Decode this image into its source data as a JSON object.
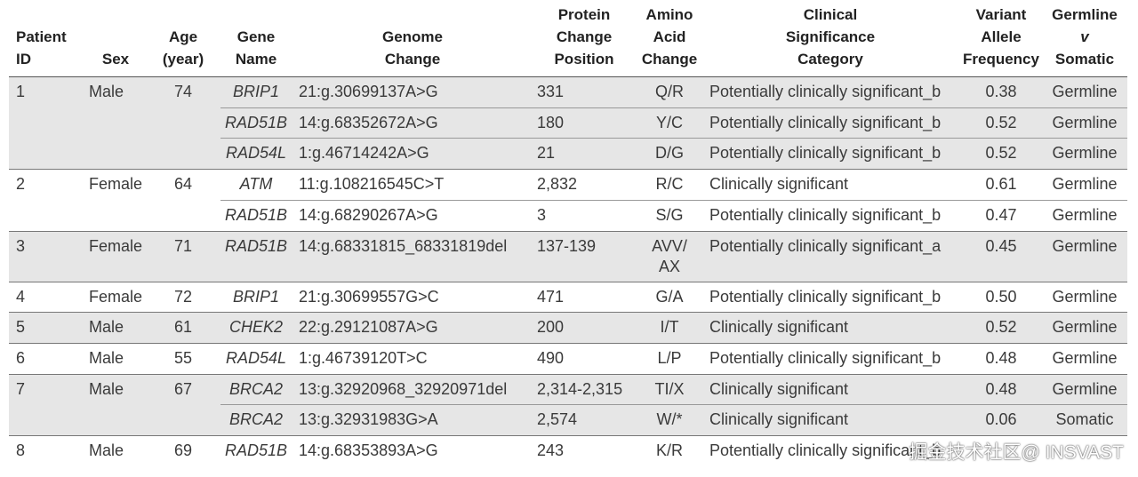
{
  "table": {
    "columns": [
      [
        "Patient",
        "ID"
      ],
      [
        "Sex"
      ],
      [
        "Age",
        "(year)"
      ],
      [
        "Gene",
        "Name"
      ],
      [
        "Genome",
        "Change"
      ],
      [
        "Protein",
        "Change",
        "Position"
      ],
      [
        "Amino",
        "Acid",
        "Change"
      ],
      [
        "Clinical",
        "Significance",
        "Category"
      ],
      [
        "Variant",
        "Allele",
        "Frequency"
      ],
      [
        "Germline",
        "v",
        "Somatic"
      ]
    ],
    "patients": [
      {
        "id": "1",
        "sex": "Male",
        "age": "74",
        "variants": [
          {
            "gene": "BRIP1",
            "genome": "21:g.30699137A>G",
            "protein": "331",
            "amino": "Q/R",
            "category": "Potentially clinically significant_b",
            "vaf": "0.38",
            "origin": "Germline"
          },
          {
            "gene": "RAD51B",
            "genome": "14:g.68352672A>G",
            "protein": "180",
            "amino": "Y/C",
            "category": "Potentially clinically significant_b",
            "vaf": "0.52",
            "origin": "Germline"
          },
          {
            "gene": "RAD54L",
            "genome": "1:g.46714242A>G",
            "protein": "21",
            "amino": "D/G",
            "category": "Potentially clinically significant_b",
            "vaf": "0.52",
            "origin": "Germline"
          }
        ]
      },
      {
        "id": "2",
        "sex": "Female",
        "age": "64",
        "variants": [
          {
            "gene": "ATM",
            "genome": "11:g.108216545C>T",
            "protein": "2,832",
            "amino": "R/C",
            "category": "Clinically significant",
            "vaf": "0.61",
            "origin": "Germline"
          },
          {
            "gene": "RAD51B",
            "genome": "14:g.68290267A>G",
            "protein": "3",
            "amino": "S/G",
            "category": "Potentially clinically significant_b",
            "vaf": "0.47",
            "origin": "Germline"
          }
        ]
      },
      {
        "id": "3",
        "sex": "Female",
        "age": "71",
        "variants": [
          {
            "gene": "RAD51B",
            "genome": "14:g.68331815_68331819del",
            "protein": "137-139",
            "amino": "AVV/\nAX",
            "category": "Potentially clinically significant_a",
            "vaf": "0.45",
            "origin": "Germline"
          }
        ]
      },
      {
        "id": "4",
        "sex": "Female",
        "age": "72",
        "variants": [
          {
            "gene": "BRIP1",
            "genome": "21:g.30699557G>C",
            "protein": "471",
            "amino": "G/A",
            "category": "Potentially clinically significant_b",
            "vaf": "0.50",
            "origin": "Germline"
          }
        ]
      },
      {
        "id": "5",
        "sex": "Male",
        "age": "61",
        "variants": [
          {
            "gene": "CHEK2",
            "genome": "22:g.29121087A>G",
            "protein": "200",
            "amino": "I/T",
            "category": "Clinically significant",
            "vaf": "0.52",
            "origin": "Germline"
          }
        ]
      },
      {
        "id": "6",
        "sex": "Male",
        "age": "55",
        "variants": [
          {
            "gene": "RAD54L",
            "genome": "1:g.46739120T>C",
            "protein": "490",
            "amino": "L/P",
            "category": "Potentially clinically significant_b",
            "vaf": "0.48",
            "origin": "Germline"
          }
        ]
      },
      {
        "id": "7",
        "sex": "Male",
        "age": "67",
        "variants": [
          {
            "gene": "BRCA2",
            "genome": "13:g.32920968_32920971del",
            "protein": "2,314-2,315",
            "amino": "TI/X",
            "category": "Clinically significant",
            "vaf": "0.48",
            "origin": "Germline"
          },
          {
            "gene": "BRCA2",
            "genome": "13:g.32931983G>A",
            "protein": "2,574",
            "amino": "W/*",
            "category": "Clinically significant",
            "vaf": "0.06",
            "origin": "Somatic"
          }
        ]
      },
      {
        "id": "8",
        "sex": "Male",
        "age": "69",
        "variants": [
          {
            "gene": "RAD51B",
            "genome": "14:g.68353893A>G",
            "protein": "243",
            "amino": "K/R",
            "category": "Potentially clinically significant_b"
          }
        ]
      }
    ]
  },
  "watermark": "掘金技术社区@ INSVAST"
}
